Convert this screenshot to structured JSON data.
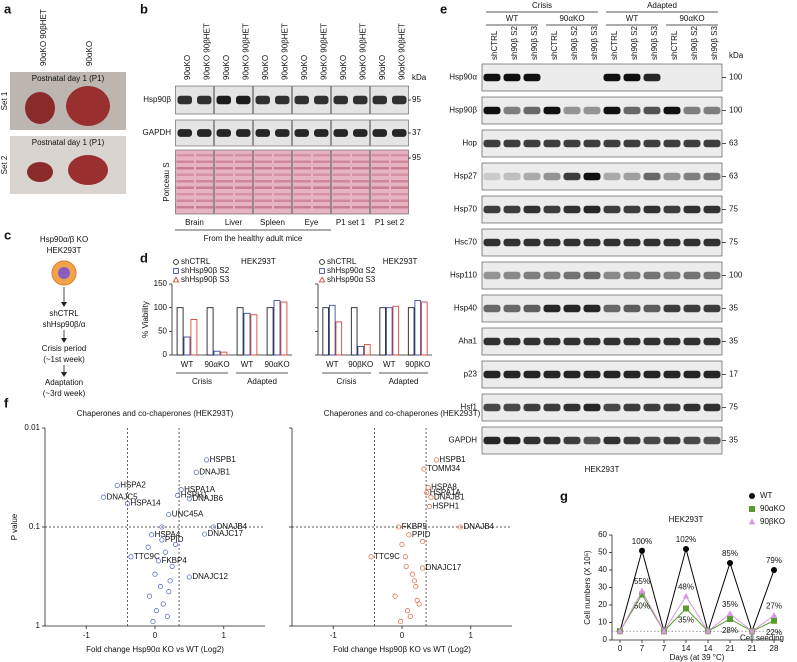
{
  "panels": {
    "a": {
      "letter": "a",
      "columns": [
        "90αKO 90βHET",
        "90αKO"
      ],
      "photos": [
        {
          "caption": "Postnatal day 1 (P1)",
          "label": "Set 1"
        },
        {
          "caption": "Postnatal day 1 (P1)",
          "label": "Set 2"
        }
      ]
    },
    "b": {
      "letter": "b",
      "lanes": [
        "90αKO",
        "90αKO 90βHET",
        "90αKO",
        "90αKO 90βHET",
        "90αKO",
        "90αKO 90βHET",
        "90αKO",
        "90αKO 90βHET",
        "90αKO",
        "90αKO 90βHET",
        "90αKO",
        "90αKO 90βHET"
      ],
      "kda_header": "kDa",
      "rows": [
        {
          "label": "Hsp90β",
          "kda": 95
        },
        {
          "label": "GAPDH",
          "kda": 37
        },
        {
          "label": "Ponceau S",
          "kda": 95
        }
      ],
      "tissues": [
        "Brain",
        "Liver",
        "Spleen",
        "Eye",
        "P1 set 1",
        "P1 set 2"
      ],
      "footer": "From the healthy adult mice"
    },
    "c": {
      "letter": "c",
      "steps": [
        [
          "Hsp90α/β KO",
          "HEK293T"
        ],
        [
          "shCTRL",
          "shHsp90β/α"
        ],
        [
          "Crisis period",
          "(~1st week)"
        ],
        [
          "Adaptation",
          "(~3rd week)"
        ]
      ]
    },
    "d": {
      "letter": "d",
      "charts": [
        {
          "type": "bar",
          "title": "HEK293T",
          "ylabel": "% Viability",
          "ylim": [
            0,
            150
          ],
          "yticks": [
            0,
            50,
            100,
            150
          ],
          "groups": [
            "Crisis",
            "Adapted"
          ],
          "categories": [
            "WT",
            "90αKO",
            "WT",
            "90αKO"
          ],
          "series": [
            {
              "name": "shCTRL",
              "color": "#222222",
              "marker": "circle",
              "values": [
                100,
                100,
                100,
                100
              ]
            },
            {
              "name": "shHsp90β S2",
              "color": "#3a4aa6",
              "marker": "square",
              "values": [
                38,
                8,
                88,
                115
              ]
            },
            {
              "name": "shHsp90β S3",
              "color": "#d8453b",
              "marker": "triangle",
              "values": [
                75,
                6,
                85,
                112
              ]
            }
          ]
        },
        {
          "type": "bar",
          "title": "HEK293T",
          "ylim": [
            0,
            150
          ],
          "yticks": [
            0,
            50,
            100,
            150
          ],
          "groups": [
            "Crisis",
            "Adapted"
          ],
          "categories": [
            "WT",
            "90βKO",
            "WT",
            "90βKO"
          ],
          "series": [
            {
              "name": "shCTRL",
              "color": "#222222",
              "marker": "circle",
              "values": [
                100,
                100,
                100,
                100
              ]
            },
            {
              "name": "shHsp90α S2",
              "color": "#3a4aa6",
              "marker": "square",
              "values": [
                105,
                18,
                100,
                115
              ]
            },
            {
              "name": "shHsp90α S3",
              "color": "#d8453b",
              "marker": "triangle",
              "values": [
                70,
                22,
                103,
                112
              ]
            }
          ]
        }
      ]
    },
    "e": {
      "letter": "e",
      "conditions": [
        {
          "label": "Crisis",
          "groups": [
            "WT",
            "90αKO"
          ]
        },
        {
          "label": "Adapted",
          "groups": [
            "WT",
            "90αKO"
          ]
        }
      ],
      "lanes": [
        "shCTRL",
        "sh90β S2",
        "sh90β S3",
        "shCTRL",
        "sh90β S2",
        "sh90β S3",
        "shCTRL",
        "sh90β S2",
        "sh90β S3",
        "shCTRL",
        "sh90β S2",
        "sh90β S3"
      ],
      "kda_header": "kDa",
      "rows": [
        {
          "label": "Hsp90α",
          "kda": 100
        },
        {
          "label": "Hsp90β",
          "kda": 100
        },
        {
          "label": "Hop",
          "kda": 63
        },
        {
          "label": "Hsp27",
          "kda": 63
        },
        {
          "label": "Hsp70",
          "kda": 75
        },
        {
          "label": "Hsc70",
          "kda": 75
        },
        {
          "label": "Hsp110",
          "kda": 100
        },
        {
          "label": "Hsp40",
          "kda": 35
        },
        {
          "label": "Aha1",
          "kda": 35
        },
        {
          "label": "p23",
          "kda": 17
        },
        {
          "label": "Hsf1",
          "kda": 75
        },
        {
          "label": "GAPDH",
          "kda": 35
        }
      ],
      "footer": "HEK293T"
    },
    "f": {
      "letter": "f",
      "plots": [
        {
          "type": "scatter",
          "title": "Chaperones and co-chaperones (HEK293T)",
          "xlabel": "Fold change Hsp90α KO vs WT (Log2)",
          "xlabel_color": "#2a3fa0",
          "ylabel": "P value",
          "color": "#4a5fc0",
          "xlim": [
            -1.6,
            1.6
          ],
          "xticks": [
            -1,
            0,
            1
          ],
          "ylim": [
            0.01,
            1
          ],
          "yticks": [
            0.01,
            0.1,
            1
          ],
          "log_y": true,
          "y_reversed": true,
          "thresholds": {
            "x": [
              -0.4,
              0.35
            ],
            "y": 0.1
          },
          "x": [
            0.75,
            0.6,
            -0.55,
            -0.75,
            -0.4,
            0.38,
            0.33,
            0.5,
            0.2,
            0.85,
            0.72,
            -0.35,
            0.1,
            0.5,
            -0.05,
            0.05,
            -0.1,
            0.15,
            0.25,
            0.0,
            0.08,
            -0.08,
            0.2,
            0.12,
            0.02,
            0.18,
            -0.03,
            0.3,
            0.1,
            0.22
          ],
          "p": [
            0.021,
            0.028,
            0.038,
            0.05,
            0.058,
            0.042,
            0.048,
            0.052,
            0.075,
            0.1,
            0.118,
            0.2,
            0.135,
            0.32,
            0.12,
            0.22,
            0.16,
            0.18,
            0.25,
            0.3,
            0.4,
            0.5,
            0.45,
            0.6,
            0.7,
            0.8,
            0.9,
            0.15,
            0.1,
            0.35
          ],
          "labels": [
            "HSPB1",
            "DNAJB1",
            "HSPA2",
            "DNAJC5",
            "HSPA14",
            "HSPA1A",
            "HSPH1",
            "DNAJB6",
            "UNC45A",
            "DNAJB4",
            "DNAJC17",
            "TTC9C",
            "PPID",
            "DNAJC12",
            "HSPA4",
            "FKBP4",
            null,
            null,
            null,
            null,
            null,
            null,
            null,
            null,
            null,
            null,
            null,
            null,
            null,
            null
          ]
        },
        {
          "type": "scatter",
          "title": "Chaperones and co-chaperones (HEK293T)",
          "xlabel": "Fold change Hsp90β KO vs WT (Log2)",
          "xlabel_color": "#c0263a",
          "color": "#e0603a",
          "xlim": [
            -1.6,
            1.6
          ],
          "xticks": [
            -1,
            0,
            1
          ],
          "ylim": [
            0.01,
            1
          ],
          "yticks": [
            0.01,
            0.1,
            1
          ],
          "log_y": true,
          "y_reversed": true,
          "thresholds": {
            "x": [
              -0.4,
              0.35
            ],
            "y": 0.1
          },
          "x": [
            0.5,
            0.32,
            0.38,
            0.42,
            0.36,
            0.85,
            -0.45,
            0.3,
            0.4,
            -0.05,
            0.1,
            0.0,
            0.05,
            0.15,
            0.2,
            -0.1,
            0.25,
            0.08,
            0.12,
            -0.02,
            0.18,
            0.3,
            0.06,
            0.22
          ],
          "p": [
            0.021,
            0.026,
            0.04,
            0.05,
            0.045,
            0.1,
            0.2,
            0.26,
            0.062,
            0.1,
            0.12,
            0.15,
            0.2,
            0.3,
            0.4,
            0.5,
            0.6,
            0.7,
            0.8,
            0.9,
            0.35,
            0.14,
            0.25,
            0.55
          ],
          "labels": [
            "HSPB1",
            "TOMM34",
            "HSPA8",
            "DNAJB1",
            "HSPA1A",
            "DNAJB4",
            "TTC9C",
            "DNAJC17",
            "HSPH1",
            "FKBP5",
            "PPID",
            null,
            null,
            null,
            null,
            null,
            null,
            null,
            null,
            null,
            null,
            null,
            null,
            null
          ]
        }
      ]
    },
    "g": {
      "letter": "g",
      "type": "line",
      "title": "HEK293T",
      "ylabel": "Cell numbers (X 10⁵)",
      "xlabel": "Days (at 39 °C)",
      "categories": [
        "0",
        "7",
        "7",
        "14",
        "14",
        "21",
        "21",
        "28"
      ],
      "ylim": [
        0,
        60
      ],
      "yticks": [
        0,
        10,
        20,
        30,
        40,
        50,
        60
      ],
      "baseline": {
        "value": 5,
        "label": "Cell seeding"
      },
      "series": [
        {
          "name": "WT",
          "color": "#000000",
          "marker": "circle",
          "values": [
            5,
            51,
            5,
            52,
            5,
            44,
            5,
            40
          ],
          "percent_labels": [
            "100%",
            "102%",
            "85%",
            "79%"
          ],
          "label_color": "#000000",
          "label_position": "above"
        },
        {
          "name": "90αKO",
          "color": "#5b9a2c",
          "marker": "square",
          "values": [
            5,
            26,
            5,
            18,
            5,
            12,
            5,
            11
          ],
          "percent_labels": [
            "50%",
            "35%",
            "28%",
            "22%"
          ],
          "label_color": "#5fa52a",
          "label_position": "below"
        },
        {
          "name": "90βKO",
          "color": "#d79ae0",
          "marker": "triangle",
          "values": [
            5,
            28,
            5,
            25,
            5,
            15,
            5,
            14
          ],
          "percent_labels": [
            "55%",
            "48%",
            "35%",
            "27%"
          ],
          "label_color": "#e0457f",
          "label_position": "above"
        }
      ]
    }
  }
}
